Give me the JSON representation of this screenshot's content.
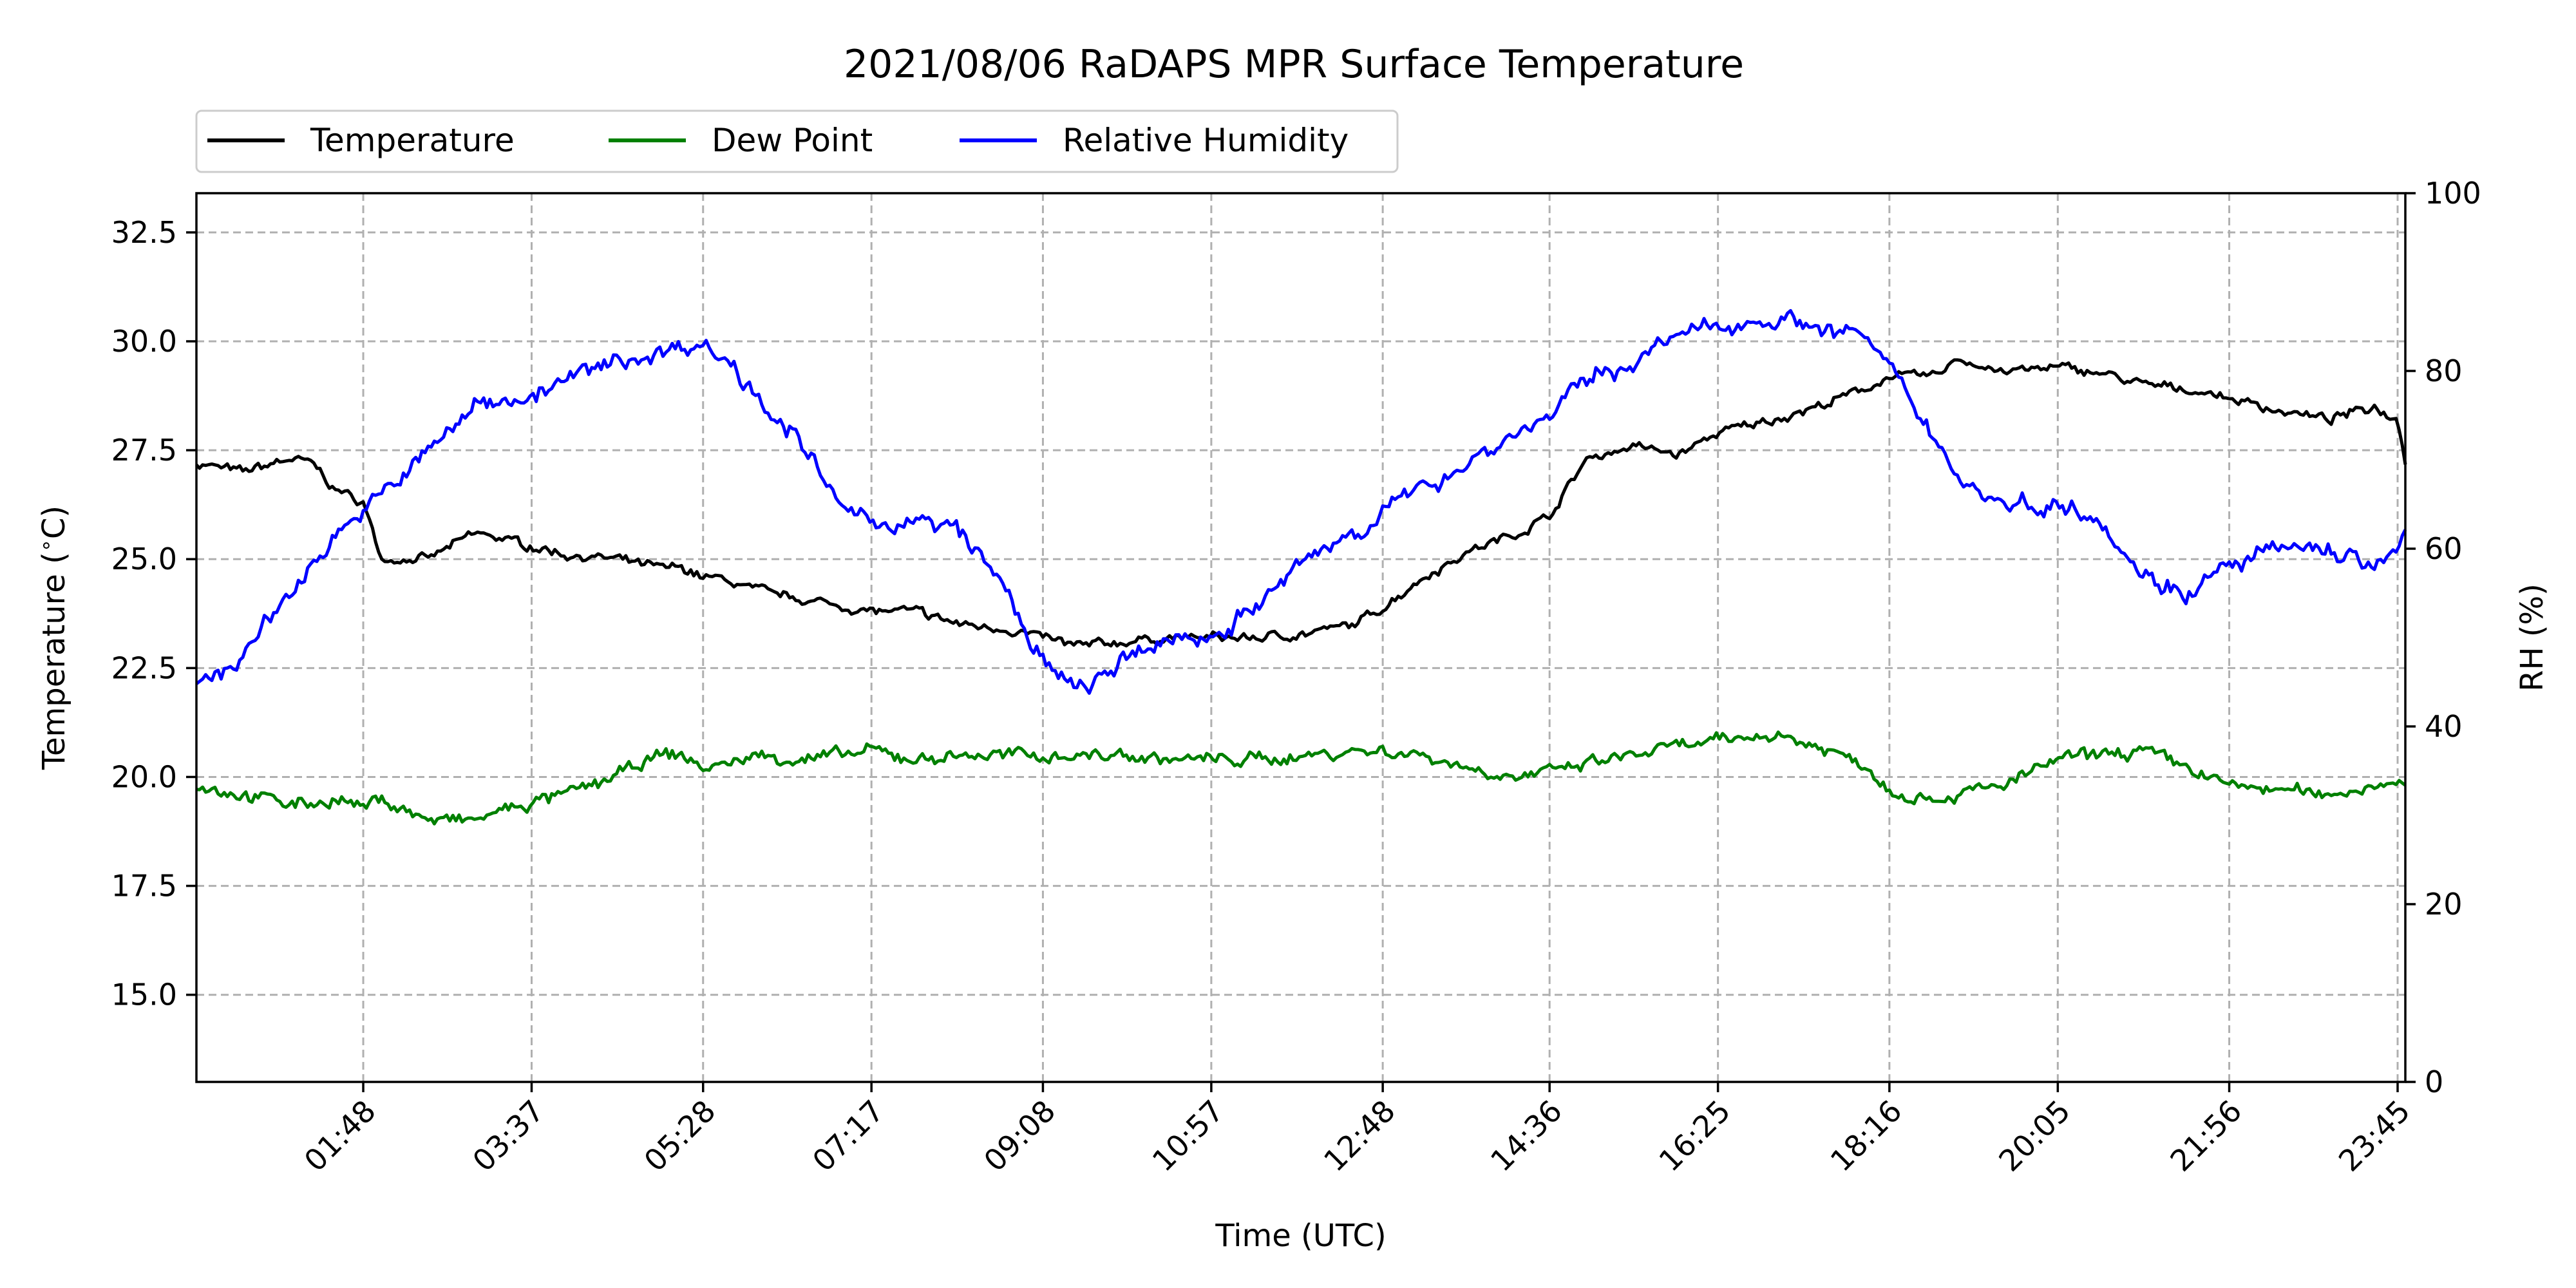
{
  "chart_data": {
    "type": "line",
    "title": "2021/08/06 RaDAPS MPR Surface Temperature",
    "xlabel": "Time (UTC)",
    "ylabel": "Temperature ($^\\circ$C)",
    "y2label": "RH (%)",
    "xlim": [
      "00:00",
      "23:50"
    ],
    "ylim": [
      13.0,
      33.4
    ],
    "y2lim": [
      0,
      100
    ],
    "x_ticks": [
      "01:48",
      "03:37",
      "05:28",
      "07:17",
      "09:08",
      "10:57",
      "12:48",
      "14:36",
      "16:25",
      "18:16",
      "20:05",
      "21:56",
      "23:45"
    ],
    "y_ticks": [
      "15.0",
      "17.5",
      "20.0",
      "22.5",
      "25.0",
      "27.5",
      "30.0",
      "32.5"
    ],
    "y2_ticks": [
      "0",
      "20",
      "40",
      "60",
      "80",
      "100"
    ],
    "grid": true,
    "legend_position": "top-left",
    "x": [
      "00:00",
      "00:30",
      "01:00",
      "01:15",
      "01:30",
      "01:48",
      "02:00",
      "02:30",
      "03:00",
      "03:15",
      "03:37",
      "04:00",
      "04:30",
      "05:00",
      "05:15",
      "05:28",
      "05:45",
      "06:00",
      "06:30",
      "07:00",
      "07:17",
      "07:45",
      "08:15",
      "08:45",
      "09:08",
      "09:30",
      "10:00",
      "10:30",
      "10:57",
      "11:30",
      "12:00",
      "12:30",
      "12:48",
      "13:15",
      "13:45",
      "14:15",
      "14:36",
      "15:00",
      "15:30",
      "16:00",
      "16:25",
      "17:00",
      "17:30",
      "18:00",
      "18:16",
      "18:45",
      "19:00",
      "19:30",
      "20:05",
      "20:30",
      "21:00",
      "21:30",
      "21:56",
      "22:30",
      "23:00",
      "23:30",
      "23:45",
      "23:50"
    ],
    "series": [
      {
        "name": "Temperature",
        "axis": "left",
        "color": "#000000",
        "values": [
          27.2,
          27.0,
          27.3,
          27.2,
          26.6,
          26.3,
          25.0,
          25.0,
          25.6,
          25.5,
          25.3,
          25.1,
          25.0,
          24.8,
          24.8,
          24.6,
          24.5,
          24.3,
          24.1,
          23.9,
          23.8,
          23.8,
          23.5,
          23.4,
          23.2,
          23.0,
          23.1,
          23.2,
          23.2,
          23.2,
          23.3,
          23.5,
          23.9,
          24.6,
          25.2,
          25.6,
          26.0,
          27.3,
          27.6,
          27.4,
          27.9,
          28.2,
          28.5,
          28.9,
          29.2,
          29.2,
          29.6,
          29.3,
          29.4,
          29.3,
          29.0,
          28.9,
          28.7,
          28.4,
          28.2,
          28.5,
          28.2,
          27.3
        ]
      },
      {
        "name": "Dew Point",
        "axis": "left",
        "color": "#008000",
        "values": [
          19.8,
          19.6,
          19.4,
          19.4,
          19.5,
          19.3,
          19.5,
          19.0,
          19.0,
          19.2,
          19.4,
          19.6,
          20.0,
          20.5,
          20.5,
          20.2,
          20.3,
          20.5,
          20.4,
          20.5,
          20.6,
          20.4,
          20.5,
          20.5,
          20.5,
          20.5,
          20.5,
          20.4,
          20.4,
          20.4,
          20.5,
          20.6,
          20.6,
          20.5,
          20.2,
          20.0,
          20.1,
          20.3,
          20.5,
          20.7,
          20.8,
          21.0,
          20.7,
          20.3,
          19.7,
          19.5,
          19.6,
          19.8,
          20.4,
          20.5,
          20.6,
          20.2,
          19.8,
          19.7,
          19.6,
          19.8,
          20.0,
          19.8
        ]
      },
      {
        "name": "Relative Humidity",
        "axis": "right",
        "color": "#0000ff",
        "values": [
          44,
          48,
          55,
          58,
          62,
          64,
          66,
          71,
          76,
          77,
          77,
          79,
          81,
          82,
          83,
          83,
          81,
          78,
          72,
          64,
          63,
          63,
          62,
          55,
          47,
          44,
          47,
          50,
          50,
          54,
          59,
          62,
          64,
          67,
          70,
          73,
          75,
          79,
          81,
          84,
          85,
          86,
          85,
          84,
          80,
          73,
          68,
          65,
          65,
          64,
          57,
          55,
          58,
          60,
          60,
          58,
          59,
          62
        ]
      }
    ]
  }
}
